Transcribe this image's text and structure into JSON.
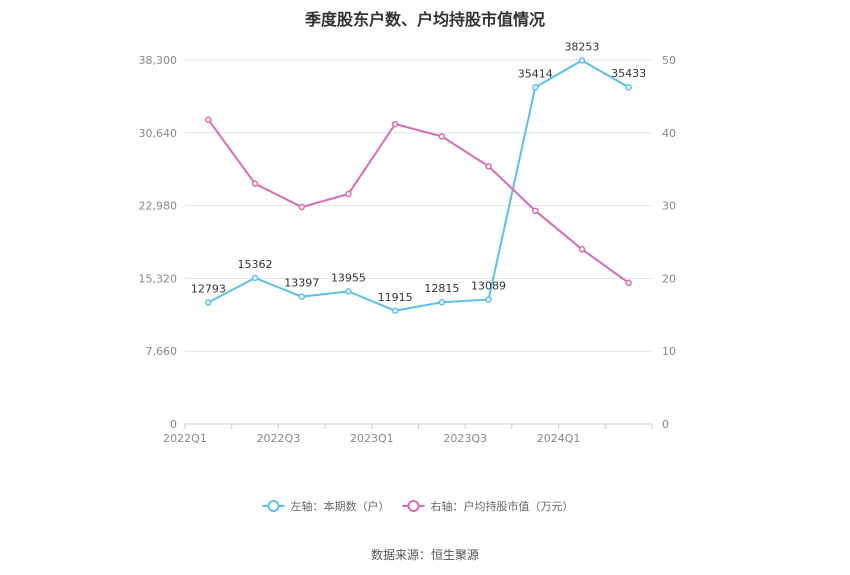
{
  "chart_data": {
    "type": "line",
    "title": "季度股东户数、户均持股市值情况",
    "categories": [
      "2022Q1",
      "2022Q2",
      "2022Q3",
      "2022Q4",
      "2023Q1",
      "2023Q2",
      "2023Q3",
      "2023Q4",
      "2024Q1",
      "2024Q2"
    ],
    "x_tick_labels": [
      "2022Q1",
      "2022Q3",
      "2023Q1",
      "2023Q3",
      "2024Q1"
    ],
    "left_axis": {
      "ylim": [
        0,
        38300
      ],
      "ticks": [
        "0",
        "7,660",
        "15,320",
        "22,980",
        "30,640",
        "38,300"
      ]
    },
    "right_axis": {
      "ylim": [
        0,
        50
      ],
      "ticks": [
        "0",
        "10",
        "20",
        "30",
        "40",
        "50"
      ]
    },
    "grid": true,
    "legend_position": "bottom",
    "series": [
      {
        "name": "左轴：本期数（户）",
        "axis": "left",
        "color": "#5bc0eb",
        "values": [
          12793,
          15362,
          13397,
          13955,
          11915,
          12815,
          13089,
          35414,
          38253,
          35433
        ],
        "labels": [
          "12793",
          "15362",
          "13397",
          "13955",
          "11915",
          "12815",
          "13089",
          "35414",
          "38253",
          "35433"
        ]
      },
      {
        "name": "右轴：户均持股市值（万元）",
        "axis": "right",
        "color": "#d96bb0",
        "values": [
          41.8,
          33.0,
          29.8,
          31.6,
          41.2,
          39.5,
          35.4,
          29.3,
          24.0,
          19.4
        ]
      }
    ]
  },
  "source": "数据来源：恒生聚源"
}
